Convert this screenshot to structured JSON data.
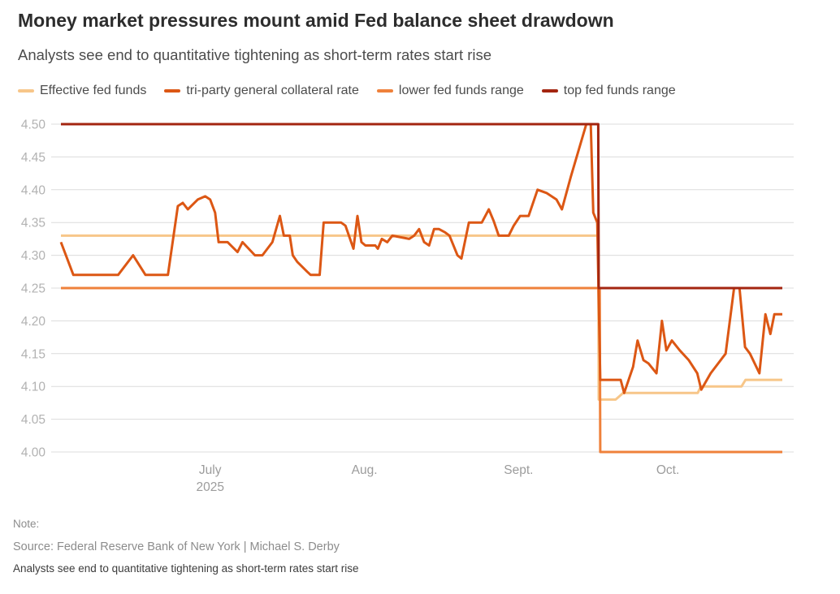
{
  "header": {
    "title": "Money market pressures mount amid Fed balance sheet drawdown",
    "subtitle": "Analysts see end to quantitative tightening as short-term rates start rise"
  },
  "footer": {
    "note": "Note:",
    "source": "Source: Federal Reserve Bank of New York | Michael S. Derby",
    "caption": "Analysts see end to quantitative tightening as short-term rates start rise"
  },
  "chart_data": {
    "type": "line",
    "title": "Money market pressures mount amid Fed balance sheet drawdown",
    "x_unit": "days since June 1, 2025",
    "x_domain": [
      0,
      145
    ],
    "ylim": [
      4.0,
      4.5
    ],
    "grid": true,
    "legend_position": "top",
    "gridline_color": "#dcdcdc",
    "y_ticks": [
      4.0,
      4.05,
      4.1,
      4.15,
      4.2,
      4.25,
      4.3,
      4.35,
      4.4,
      4.45,
      4.5
    ],
    "x_ticks": [
      {
        "day": 30,
        "label": "July",
        "sublabel": "2025"
      },
      {
        "day": 61,
        "label": "Aug."
      },
      {
        "day": 92,
        "label": "Sept."
      },
      {
        "day": 122,
        "label": "Oct."
      }
    ],
    "series": [
      {
        "name": "Effective fed funds",
        "color": "#F7C689",
        "points": [
          [
            0,
            4.33
          ],
          [
            108,
            4.33
          ],
          [
            108.1,
            4.08
          ],
          [
            111.5,
            4.08
          ],
          [
            113,
            4.09
          ],
          [
            128,
            4.09
          ],
          [
            128.6,
            4.1
          ],
          [
            136.8,
            4.1
          ],
          [
            137.6,
            4.11
          ],
          [
            145,
            4.11
          ]
        ]
      },
      {
        "name": "tri-party general collateral rate",
        "color": "#DC5714",
        "points": [
          [
            0,
            4.32
          ],
          [
            2.5,
            4.27
          ],
          [
            11.5,
            4.27
          ],
          [
            14.5,
            4.3
          ],
          [
            17,
            4.27
          ],
          [
            21.5,
            4.27
          ],
          [
            23.5,
            4.375
          ],
          [
            24.5,
            4.38
          ],
          [
            25.5,
            4.37
          ],
          [
            27.5,
            4.385
          ],
          [
            29,
            4.39
          ],
          [
            30,
            4.385
          ],
          [
            31,
            4.365
          ],
          [
            31.7,
            4.32
          ],
          [
            33.5,
            4.32
          ],
          [
            35.5,
            4.305
          ],
          [
            36.5,
            4.32
          ],
          [
            39,
            4.3
          ],
          [
            40.5,
            4.3
          ],
          [
            42.5,
            4.32
          ],
          [
            44,
            4.36
          ],
          [
            44.8,
            4.33
          ],
          [
            46,
            4.33
          ],
          [
            46.6,
            4.3
          ],
          [
            47.5,
            4.29
          ],
          [
            49.5,
            4.275
          ],
          [
            50.2,
            4.27
          ],
          [
            52,
            4.27
          ],
          [
            52.8,
            4.35
          ],
          [
            56.3,
            4.35
          ],
          [
            57.2,
            4.345
          ],
          [
            58.8,
            4.31
          ],
          [
            59.6,
            4.36
          ],
          [
            60.4,
            4.32
          ],
          [
            61.2,
            4.315
          ],
          [
            63.2,
            4.315
          ],
          [
            63.7,
            4.31
          ],
          [
            64.5,
            4.325
          ],
          [
            65.6,
            4.32
          ],
          [
            66.6,
            4.33
          ],
          [
            70,
            4.325
          ],
          [
            71,
            4.33
          ],
          [
            72,
            4.34
          ],
          [
            73,
            4.32
          ],
          [
            74,
            4.315
          ],
          [
            75,
            4.34
          ],
          [
            76,
            4.34
          ],
          [
            77.2,
            4.335
          ],
          [
            78.1,
            4.33
          ],
          [
            79.7,
            4.3
          ],
          [
            80.5,
            4.295
          ],
          [
            82,
            4.35
          ],
          [
            84.6,
            4.35
          ],
          [
            86,
            4.37
          ],
          [
            87,
            4.352
          ],
          [
            88,
            4.33
          ],
          [
            90,
            4.33
          ],
          [
            91,
            4.345
          ],
          [
            92.3,
            4.36
          ],
          [
            94,
            4.36
          ],
          [
            95.8,
            4.4
          ],
          [
            97.6,
            4.395
          ],
          [
            99.6,
            4.385
          ],
          [
            100.7,
            4.37
          ],
          [
            102.5,
            4.42
          ],
          [
            105.6,
            4.5
          ],
          [
            106.5,
            4.5
          ],
          [
            107,
            4.365
          ],
          [
            107.8,
            4.35
          ],
          [
            108.4,
            4.11
          ],
          [
            112.5,
            4.11
          ],
          [
            113.2,
            4.09
          ],
          [
            115,
            4.13
          ],
          [
            115.9,
            4.17
          ],
          [
            117.1,
            4.14
          ],
          [
            118.1,
            4.135
          ],
          [
            119.7,
            4.12
          ],
          [
            120.8,
            4.2
          ],
          [
            121.7,
            4.155
          ],
          [
            122.8,
            4.17
          ],
          [
            124.4,
            4.155
          ],
          [
            126.2,
            4.14
          ],
          [
            127.9,
            4.12
          ],
          [
            128.7,
            4.095
          ],
          [
            130.6,
            4.12
          ],
          [
            133.6,
            4.15
          ],
          [
            135.3,
            4.25
          ],
          [
            136.4,
            4.25
          ],
          [
            137.5,
            4.16
          ],
          [
            138.5,
            4.15
          ],
          [
            140.4,
            4.12
          ],
          [
            141.6,
            4.21
          ],
          [
            142.6,
            4.18
          ],
          [
            143.4,
            4.21
          ],
          [
            145,
            4.21
          ]
        ]
      },
      {
        "name": "lower fed funds range",
        "color": "#EF813B",
        "points": [
          [
            0,
            4.25
          ],
          [
            108.3,
            4.25
          ],
          [
            108.4,
            4.0
          ],
          [
            145,
            4.0
          ]
        ]
      },
      {
        "name": "top fed funds range",
        "color": "#A32510",
        "points": [
          [
            0,
            4.5
          ],
          [
            108,
            4.5
          ],
          [
            108.1,
            4.25
          ],
          [
            145,
            4.25
          ]
        ]
      }
    ]
  }
}
